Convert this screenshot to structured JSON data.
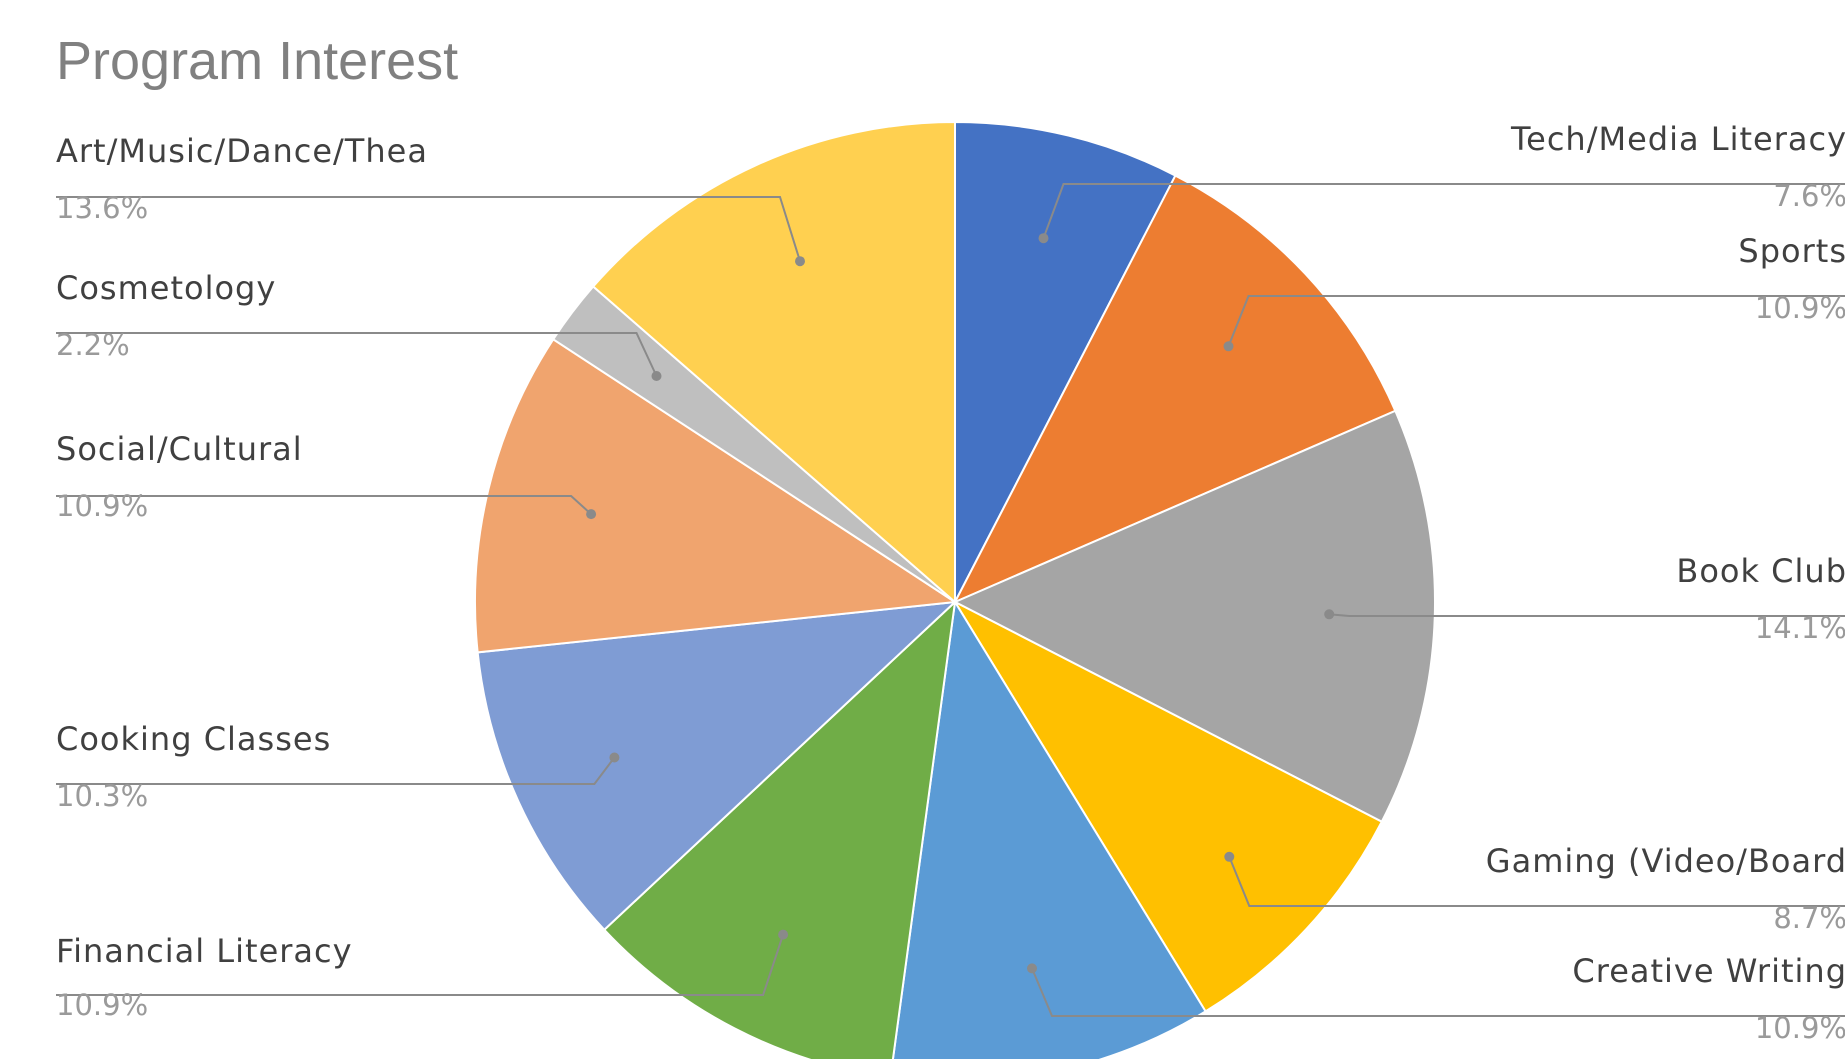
{
  "chart_data": {
    "type": "pie",
    "title": "Program Interest",
    "slices": [
      {
        "label": "Tech/Media Literacy",
        "percent_label": "7.6%",
        "value": 7.6,
        "color": "#4472C4"
      },
      {
        "label": "Sports",
        "percent_label": "10.9%",
        "value": 10.9,
        "color": "#ED7D31"
      },
      {
        "label": "Book Club",
        "percent_label": "14.1%",
        "value": 14.1,
        "color": "#A5A5A5"
      },
      {
        "label": "Gaming (Video/Board",
        "percent_label": "8.7%",
        "value": 8.7,
        "color": "#FFC000"
      },
      {
        "label": "Creative Writing",
        "percent_label": "10.9%",
        "value": 10.9,
        "color": "#5B9BD5"
      },
      {
        "label": "Financial Literacy",
        "percent_label": "10.9%",
        "value": 10.9,
        "color": "#70AD47"
      },
      {
        "label": "Cooking Classes",
        "percent_label": "10.3%",
        "value": 10.3,
        "color": "#7F9CD4"
      },
      {
        "label": "Social/Cultural",
        "percent_label": "10.9%",
        "value": 10.9,
        "color": "#F0A46E"
      },
      {
        "label": "Cosmetology",
        "percent_label": "2.2%",
        "value": 2.2,
        "color": "#BFBFBF"
      },
      {
        "label": "Art/Music/Dance/Thea",
        "percent_label": "13.6%",
        "value": 13.6,
        "color": "#FFD050"
      }
    ],
    "legend": "none",
    "data_labels": "outside-with-leader-lines"
  }
}
